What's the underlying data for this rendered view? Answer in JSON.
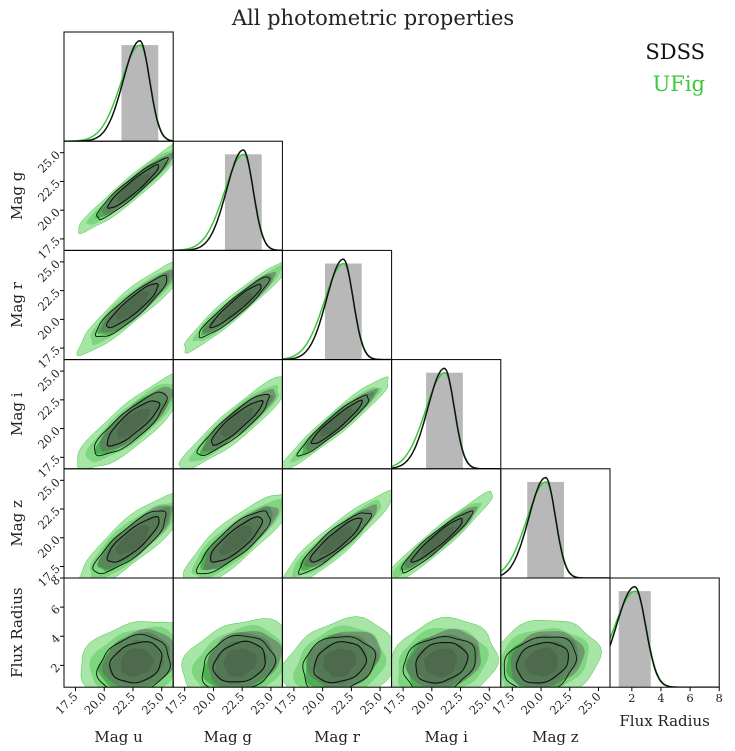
{
  "chart_data": {
    "type": "corner",
    "title": "All photometric properties",
    "variables": [
      "Mag u",
      "Mag g",
      "Mag r",
      "Mag i",
      "Mag z",
      "Flux Radius"
    ],
    "magnitude_ticks": [
      "17.5",
      "20.0",
      "22.5",
      "25.0"
    ],
    "magnitude_tick_values": [
      17.5,
      20.0,
      22.5,
      25.0
    ],
    "magnitude_range": [
      16.5,
      26.0
    ],
    "flux_radius_ticks": [
      "2",
      "4",
      "6",
      "8"
    ],
    "flux_radius_tick_values": [
      2,
      4,
      6,
      8
    ],
    "flux_radius_range": [
      0.5,
      8.0
    ],
    "series": [
      {
        "name": "SDSS",
        "color": "#111111",
        "fill": "#555555"
      },
      {
        "name": "UFig",
        "color": "#3cc83c",
        "fill": "#4caf50"
      }
    ],
    "marginal_peaks": {
      "Mag u": 23.1,
      "Mag g": 22.6,
      "Mag r": 21.8,
      "Mag i": 21.1,
      "Mag z": 20.4,
      "Flux Radius": 2.2
    },
    "legend_position": "top-right"
  }
}
